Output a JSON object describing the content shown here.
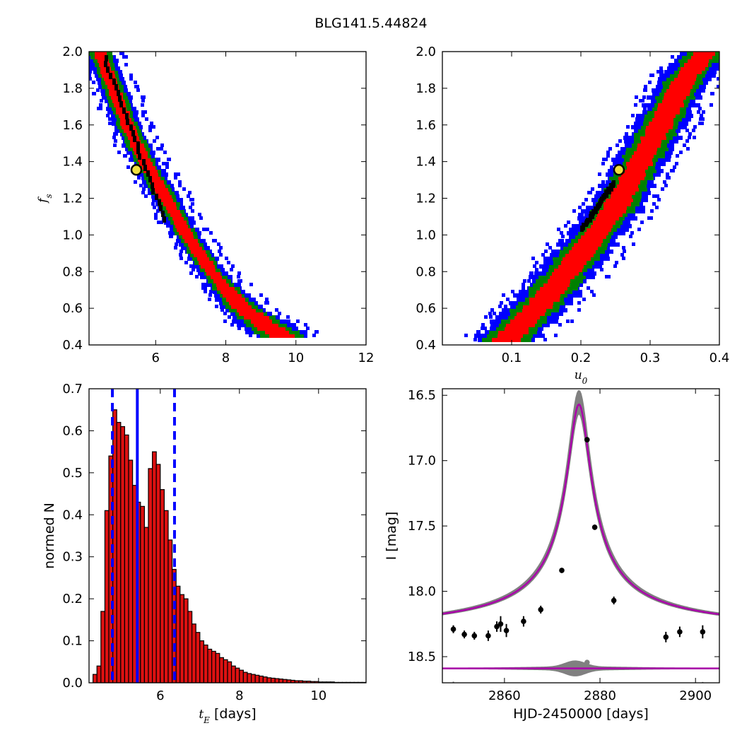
{
  "figure": {
    "title": "BLG141.5.44824"
  },
  "chart_data": [
    {
      "panel": "top-left",
      "type": "heatmap",
      "title": "",
      "xlabel": "",
      "ylabel": "f_s",
      "xlim": [
        4.1,
        12
      ],
      "ylim": [
        0.4,
        2.0
      ],
      "xticks": [
        "6",
        "8",
        "10",
        "12"
      ],
      "yticks": [
        "0.4",
        "0.6",
        "0.8",
        "1.0",
        "1.2",
        "1.4",
        "1.6",
        "1.8",
        "2.0"
      ],
      "colors": {
        "outer": "#0000ff",
        "middle": "#008000",
        "inner": "#ff0000",
        "core": "#000000",
        "marker": "#f0e040"
      },
      "ridge": [
        [
          4.4,
          2.0
        ],
        [
          4.8,
          1.8
        ],
        [
          5.2,
          1.6
        ],
        [
          5.7,
          1.4
        ],
        [
          6.3,
          1.2
        ],
        [
          6.9,
          1.0
        ],
        [
          7.6,
          0.8
        ],
        [
          8.5,
          0.6
        ],
        [
          9.6,
          0.45
        ]
      ],
      "core_segment": [
        [
          4.5,
          1.98
        ],
        [
          6.2,
          1.1
        ]
      ],
      "best_fit": [
        5.45,
        1.355
      ]
    },
    {
      "panel": "top-right",
      "type": "heatmap",
      "title": "",
      "xlabel": "u_0",
      "ylabel": "",
      "xlim": [
        0.0,
        0.4
      ],
      "ylim": [
        0.4,
        2.0
      ],
      "xticks": [
        "0.1",
        "0.2",
        "0.3",
        "0.4"
      ],
      "yticks": [
        "0.4",
        "0.6",
        "0.8",
        "1.0",
        "1.2",
        "1.4",
        "1.6",
        "1.8",
        "2.0"
      ],
      "colors": {
        "outer": "#0000ff",
        "middle": "#008000",
        "inner": "#ff0000",
        "core": "#000000",
        "marker": "#f0e040"
      },
      "ridge": [
        [
          0.09,
          0.42
        ],
        [
          0.15,
          0.66
        ],
        [
          0.2,
          0.9
        ],
        [
          0.25,
          1.15
        ],
        [
          0.3,
          1.5
        ],
        [
          0.35,
          1.85
        ],
        [
          0.38,
          2.0
        ]
      ],
      "core_segment": [
        [
          0.2,
          1.05
        ],
        [
          0.245,
          1.3
        ]
      ],
      "best_fit": [
        0.255,
        1.355
      ]
    },
    {
      "panel": "bottom-left",
      "type": "bar",
      "title": "",
      "xlabel": "t_E [days]",
      "ylabel": "normed N",
      "xlim": [
        4.2,
        11.2
      ],
      "ylim": [
        0.0,
        0.7
      ],
      "xticks": [
        "6",
        "8",
        "10"
      ],
      "yticks": [
        "0.0",
        "0.1",
        "0.2",
        "0.3",
        "0.4",
        "0.5",
        "0.6",
        "0.7"
      ],
      "bin_start": 4.3,
      "bin_width": 0.1,
      "values": [
        0.02,
        0.04,
        0.17,
        0.41,
        0.54,
        0.65,
        0.62,
        0.61,
        0.59,
        0.53,
        0.47,
        0.43,
        0.42,
        0.37,
        0.51,
        0.55,
        0.52,
        0.46,
        0.41,
        0.34,
        0.27,
        0.23,
        0.21,
        0.2,
        0.17,
        0.14,
        0.12,
        0.1,
        0.09,
        0.08,
        0.075,
        0.07,
        0.06,
        0.055,
        0.05,
        0.04,
        0.035,
        0.03,
        0.025,
        0.022,
        0.02,
        0.018,
        0.016,
        0.014,
        0.012,
        0.011,
        0.01,
        0.009,
        0.008,
        0.007,
        0.006,
        0.005,
        0.005,
        0.004,
        0.004,
        0.003,
        0.003,
        0.002,
        0.002,
        0.002,
        0.002,
        0.001,
        0.001,
        0.001,
        0.001,
        0.001,
        0.001,
        0.001,
        0.001
      ],
      "median": 5.42,
      "lower": 4.79,
      "upper": 6.36,
      "colors": {
        "bar": "#dd1111",
        "line": "#0000ff"
      }
    },
    {
      "panel": "bottom-right",
      "type": "line",
      "title": "",
      "xlabel": "HJD-2450000 [days]",
      "ylabel": "I [mag]",
      "xlim": [
        2847,
        2905
      ],
      "ylim": [
        18.7,
        16.45
      ],
      "xticks": [
        "2860",
        "2880",
        "2900"
      ],
      "yticks": [
        "16.5",
        "17.0",
        "17.5",
        "18.0",
        "18.5"
      ],
      "model": {
        "t0": 2875.6,
        "baseline": 18.32,
        "peak": 16.57,
        "tE": 5.4
      },
      "residual_baseline": 18.59,
      "data": [
        {
          "t": 2849.3,
          "mag": 18.29,
          "err": 0.03
        },
        {
          "t": 2851.6,
          "mag": 18.33,
          "err": 0.03
        },
        {
          "t": 2853.7,
          "mag": 18.34,
          "err": 0.03
        },
        {
          "t": 2856.6,
          "mag": 18.34,
          "err": 0.04
        },
        {
          "t": 2858.4,
          "mag": 18.27,
          "err": 0.04
        },
        {
          "t": 2859.2,
          "mag": 18.25,
          "err": 0.06
        },
        {
          "t": 2860.4,
          "mag": 18.3,
          "err": 0.05
        },
        {
          "t": 2864.0,
          "mag": 18.23,
          "err": 0.04
        },
        {
          "t": 2867.6,
          "mag": 18.14,
          "err": 0.03
        },
        {
          "t": 2872.0,
          "mag": 17.84,
          "err": 0.02
        },
        {
          "t": 2877.3,
          "mag": 16.84,
          "err": 0.02
        },
        {
          "t": 2878.9,
          "mag": 17.51,
          "err": 0.02
        },
        {
          "t": 2882.9,
          "mag": 18.07,
          "err": 0.03
        },
        {
          "t": 2893.8,
          "mag": 18.35,
          "err": 0.04
        },
        {
          "t": 2896.7,
          "mag": 18.31,
          "err": 0.04
        },
        {
          "t": 2901.5,
          "mag": 18.31,
          "err": 0.05
        }
      ],
      "colors": {
        "model": "#aa00aa",
        "band": "#808080",
        "points": "#000000",
        "residuals": "#808080"
      }
    }
  ]
}
